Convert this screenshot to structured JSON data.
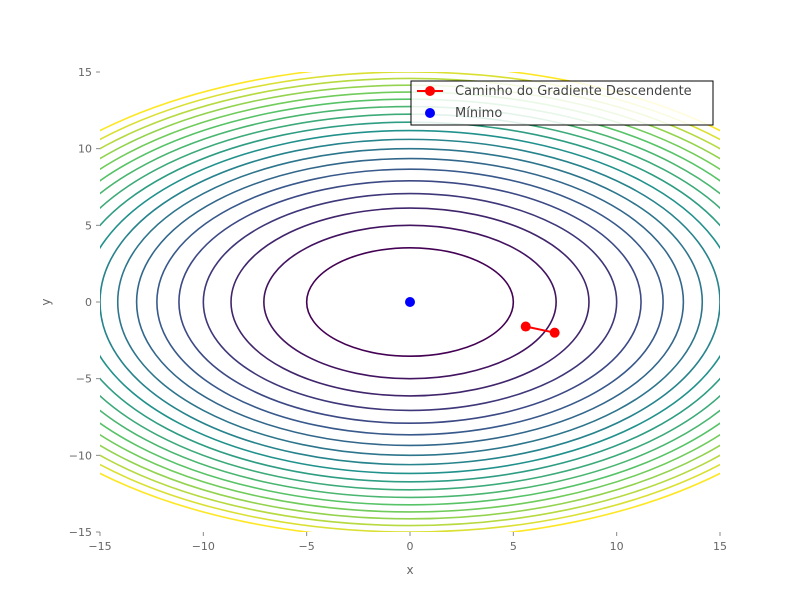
{
  "chart_data": {
    "type": "contour",
    "xlabel": "x",
    "ylabel": "y",
    "xlim": [
      -15,
      15
    ],
    "ylim": [
      -15,
      15
    ],
    "x_ticks": [
      -15,
      -10,
      -5,
      0,
      5,
      10,
      15
    ],
    "y_ticks": [
      -15,
      -10,
      -5,
      0,
      5,
      10,
      15
    ],
    "x_tick_labels": [
      "−15",
      "−10",
      "−5",
      "0",
      "5",
      "10",
      "15"
    ],
    "y_tick_labels": [
      "−15",
      "−10",
      "−5",
      "0",
      "5",
      "10",
      "15"
    ],
    "grid": false,
    "legend_position": "top-right",
    "contours": {
      "function": "x^2 + 2*y^2",
      "colormap": "viridis",
      "levels": [
        25,
        50,
        75,
        100,
        125,
        150,
        175,
        200,
        225,
        250,
        275,
        300,
        325,
        350,
        375,
        400,
        425,
        450,
        475
      ],
      "color_min": "#440154",
      "color_max": "#fde725"
    },
    "series": [
      {
        "name": "Caminho do Gradiente Descendente",
        "kind": "line-markers",
        "color": "#ff0000",
        "points": [
          {
            "x": 7.0,
            "y": -2.0
          },
          {
            "x": 5.6,
            "y": -1.6
          }
        ]
      },
      {
        "name": "Mínimo",
        "kind": "marker",
        "color": "#0000ff",
        "points": [
          {
            "x": 0,
            "y": 0
          }
        ]
      }
    ]
  }
}
